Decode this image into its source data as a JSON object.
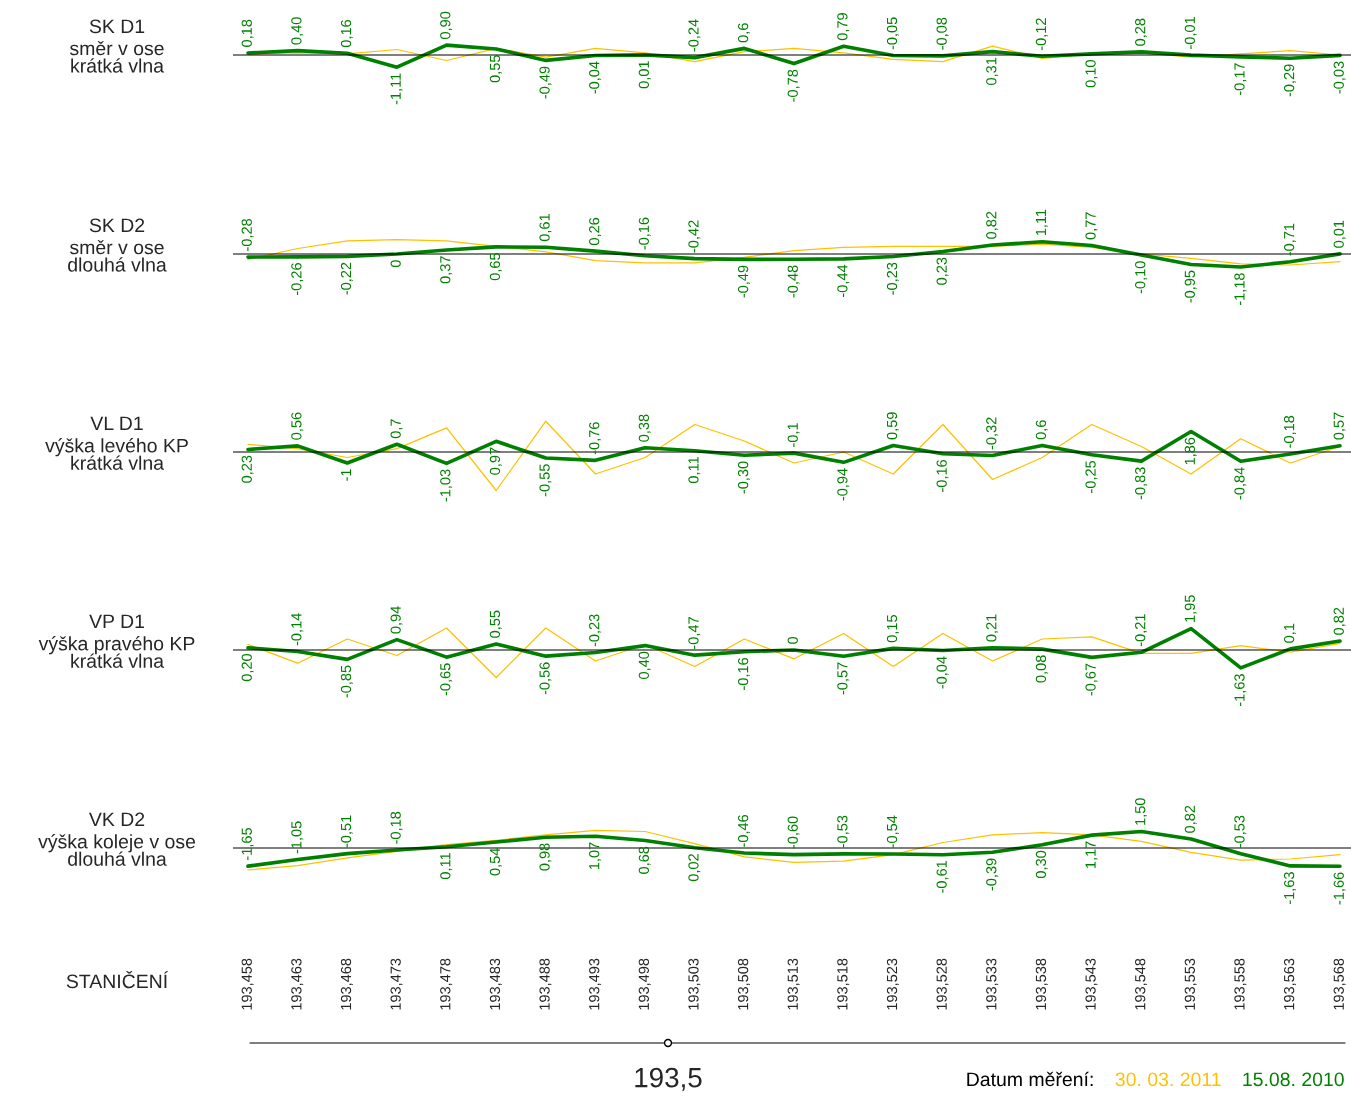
{
  "chart_data": [
    {
      "type": "line",
      "title": "SK D1",
      "subtitle": "směr v ose\nkrátká vlna",
      "categories": [
        "193,458",
        "193,463",
        "193,468",
        "193,473",
        "193,478",
        "193,483",
        "193,488",
        "193,493",
        "193,498",
        "193,503",
        "193,508",
        "193,513",
        "193,518",
        "193,523",
        "193,528",
        "193,533",
        "193,538",
        "193,543",
        "193,548",
        "193,553",
        "193,558",
        "193,563",
        "193,568"
      ],
      "tick_labels": false,
      "ref_lines": [
        {
          "axis": "y",
          "value": 0,
          "color": "#000000"
        }
      ],
      "series": [
        {
          "color": "#ffc000",
          "values": [
            0.1,
            0.2,
            0.1,
            0.5,
            -0.5,
            0.6,
            -0.2,
            0.6,
            0.2,
            -0.6,
            0.3,
            0.6,
            0.2,
            -0.4,
            -0.6,
            0.8,
            -0.3,
            0.1,
            0.2,
            -0.2,
            0.1,
            0.4,
            0.0
          ]
        },
        {
          "color": "#008000",
          "values": [
            0.18,
            0.4,
            0.16,
            -1.11,
            0.9,
            0.55,
            -0.49,
            -0.04,
            0.01,
            -0.24,
            0.6,
            -0.78,
            0.79,
            -0.05,
            -0.08,
            0.31,
            -0.12,
            0.1,
            0.28,
            -0.01,
            -0.17,
            -0.29,
            -0.03
          ],
          "value_labels": [
            "0,18",
            "0,40",
            "0,16",
            "-1,11",
            "0,90",
            "0,55",
            "-0,49",
            "-0,04",
            "0,01",
            "-0,24",
            "0,6",
            "-0,78",
            "0,79",
            "-0,05",
            "-0,08",
            "0,31",
            "-0,12",
            "0,10",
            "0,28",
            "-0,01",
            "-0,17",
            "-0,29",
            "-0,03"
          ]
        }
      ]
    },
    {
      "type": "line",
      "title": "SK D2",
      "subtitle": "směr v ose\ndlouhá vlna",
      "categories": [
        "193,458",
        "193,463",
        "193,468",
        "193,473",
        "193,478",
        "193,483",
        "193,488",
        "193,493",
        "193,498",
        "193,503",
        "193,508",
        "193,513",
        "193,518",
        "193,523",
        "193,528",
        "193,533",
        "193,538",
        "193,543",
        "193,548",
        "193,553",
        "193,558",
        "193,563",
        "193,568"
      ],
      "tick_labels": false,
      "ref_lines": [
        {
          "axis": "y",
          "value": 0,
          "color": "#000000"
        }
      ],
      "series": [
        {
          "color": "#ffc000",
          "values": [
            -0.5,
            0.5,
            1.2,
            1.3,
            1.2,
            0.7,
            0.2,
            -0.6,
            -0.8,
            -0.8,
            -0.3,
            0.3,
            0.6,
            0.7,
            0.7,
            0.7,
            0.9,
            0.6,
            0.0,
            -0.4,
            -0.9,
            -1.0,
            -0.7
          ]
        },
        {
          "color": "#008000",
          "values": [
            -0.28,
            -0.26,
            -0.22,
            0,
            0.37,
            0.65,
            0.61,
            0.26,
            -0.16,
            -0.42,
            -0.49,
            -0.48,
            -0.44,
            -0.23,
            0.23,
            0.82,
            1.11,
            0.77,
            -0.1,
            -0.95,
            -1.18,
            -0.71,
            0.01
          ],
          "value_labels": [
            "-0,28",
            "-0,26",
            "-0,22",
            "0",
            "0,37",
            "0,65",
            "0,61",
            "0,26",
            "-0,16",
            "-0,42",
            "-0,49",
            "-0,48",
            "-0,44",
            "-0,23",
            "0,23",
            "0,82",
            "1,11",
            "0,77",
            "-0,10",
            "-0,95",
            "-1,18",
            "-0,71",
            "0,01"
          ]
        }
      ]
    },
    {
      "type": "line",
      "title": "VL D1",
      "subtitle": "výška levého KP\nkrátká vlna",
      "categories": [
        "193,458",
        "193,463",
        "193,468",
        "193,473",
        "193,478",
        "193,483",
        "193,488",
        "193,493",
        "193,498",
        "193,503",
        "193,508",
        "193,513",
        "193,518",
        "193,523",
        "193,528",
        "193,533",
        "193,538",
        "193,543",
        "193,548",
        "193,553",
        "193,558",
        "193,563",
        "193,568"
      ],
      "tick_labels": false,
      "ref_lines": [
        {
          "axis": "y",
          "value": 0,
          "color": "#000000"
        }
      ],
      "series": [
        {
          "color": "#ffc000",
          "values": [
            0.7,
            0.3,
            -0.5,
            0.3,
            2.2,
            -3.5,
            2.8,
            -2.0,
            -0.5,
            2.5,
            1.0,
            -1.0,
            0.0,
            -2.0,
            2.5,
            -2.5,
            -0.5,
            2.5,
            0.5,
            -2.0,
            1.2,
            -1.0,
            0.5
          ]
        },
        {
          "color": "#008000",
          "values": [
            0.23,
            0.56,
            -1,
            0.7,
            -1.03,
            0.97,
            -0.55,
            -0.76,
            0.38,
            0.11,
            -0.3,
            -0.1,
            -0.94,
            0.59,
            -0.16,
            -0.32,
            0.6,
            -0.25,
            -0.83,
            1.86,
            -0.84,
            -0.18,
            0.57
          ],
          "value_labels": [
            "0,23",
            "0,56",
            "-1",
            "0,7",
            "-1,03",
            "0,97",
            "-0,55",
            "-0,76",
            "0,38",
            "0,11",
            "-0,30",
            "-0,1",
            "-0,94",
            "0,59",
            "-0,16",
            "-0,32",
            "0,6",
            "-0,25",
            "-0,83",
            "1,86",
            "-0,84",
            "-0,18",
            "0,57"
          ]
        }
      ]
    },
    {
      "type": "line",
      "title": "VP D1",
      "subtitle": "výška pravého KP\nkrátká vlna",
      "categories": [
        "193,458",
        "193,463",
        "193,468",
        "193,473",
        "193,478",
        "193,483",
        "193,488",
        "193,493",
        "193,498",
        "193,503",
        "193,508",
        "193,513",
        "193,518",
        "193,523",
        "193,528",
        "193,533",
        "193,538",
        "193,543",
        "193,548",
        "193,553",
        "193,558",
        "193,563",
        "193,568"
      ],
      "tick_labels": false,
      "ref_lines": [
        {
          "axis": "y",
          "value": 0,
          "color": "#000000"
        }
      ],
      "series": [
        {
          "color": "#ffc000",
          "values": [
            0.5,
            -1.2,
            1.0,
            -0.5,
            2.0,
            -2.5,
            2.0,
            -1.0,
            0.5,
            -1.5,
            1.0,
            -0.8,
            1.5,
            -1.5,
            1.5,
            -1.0,
            1.0,
            1.2,
            -0.3,
            -0.3,
            0.4,
            -0.2,
            0.6
          ]
        },
        {
          "color": "#008000",
          "values": [
            0.2,
            -0.14,
            -0.85,
            0.94,
            -0.65,
            0.55,
            -0.56,
            -0.23,
            0.4,
            -0.47,
            -0.16,
            0,
            -0.57,
            0.15,
            -0.04,
            0.21,
            0.08,
            -0.67,
            -0.21,
            1.95,
            -1.63,
            0.1,
            0.82
          ],
          "value_labels": [
            "0,20",
            "-0,14",
            "-0,85",
            "0,94",
            "-0,65",
            "0,55",
            "-0,56",
            "-0,23",
            "0,40",
            "-0,47",
            "-0,16",
            "0",
            "-0,57",
            "0,15",
            "-0,04",
            "0,21",
            "0,08",
            "-0,67",
            "-0,21",
            "1,95",
            "-1,63",
            "0,1",
            "0,82"
          ]
        }
      ]
    },
    {
      "type": "line",
      "title": "VK D2",
      "subtitle": "výška koleje v ose\ndlouhá vlna",
      "xlabel": "STANIČENÍ",
      "categories": [
        "193,458",
        "193,463",
        "193,468",
        "193,473",
        "193,478",
        "193,483",
        "193,488",
        "193,493",
        "193,498",
        "193,503",
        "193,508",
        "193,513",
        "193,518",
        "193,523",
        "193,528",
        "193,533",
        "193,538",
        "193,543",
        "193,548",
        "193,553",
        "193,558",
        "193,563",
        "193,568"
      ],
      "tick_labels": "x",
      "ref_lines": [
        {
          "axis": "y",
          "value": 0,
          "color": "#000000"
        }
      ],
      "annotations": [
        "193,5"
      ],
      "legend_title": "Datum měření:",
      "series": [
        {
          "name": "30. 03. 2011",
          "color": "#ffc000",
          "values": [
            -2.0,
            -1.6,
            -0.9,
            -0.3,
            0.3,
            0.7,
            1.2,
            1.6,
            1.5,
            0.4,
            -0.8,
            -1.3,
            -1.2,
            -0.6,
            0.5,
            1.2,
            1.4,
            1.2,
            0.6,
            -0.4,
            -1.1,
            -1.0,
            -0.6
          ]
        },
        {
          "name": "15.08. 2010",
          "color": "#008000",
          "values": [
            -1.65,
            -1.05,
            -0.51,
            -0.18,
            0.11,
            0.54,
            0.98,
            1.07,
            0.68,
            0.02,
            -0.46,
            -0.6,
            -0.53,
            -0.54,
            -0.61,
            -0.39,
            0.3,
            1.17,
            1.5,
            0.82,
            -0.53,
            -1.63,
            -1.66
          ],
          "value_labels": [
            "-1,65",
            "-1,05",
            "-0,51",
            "-0,18",
            "0,11",
            "0,54",
            "0,98",
            "1,07",
            "0,68",
            "0,02",
            "-0,46",
            "-0,60",
            "-0,53",
            "-0,54",
            "-0,61",
            "-0,39",
            "0,30",
            "1,17",
            "1,50",
            "0,82",
            "-0,53",
            "-1,63",
            "-1,66"
          ]
        }
      ]
    }
  ]
}
